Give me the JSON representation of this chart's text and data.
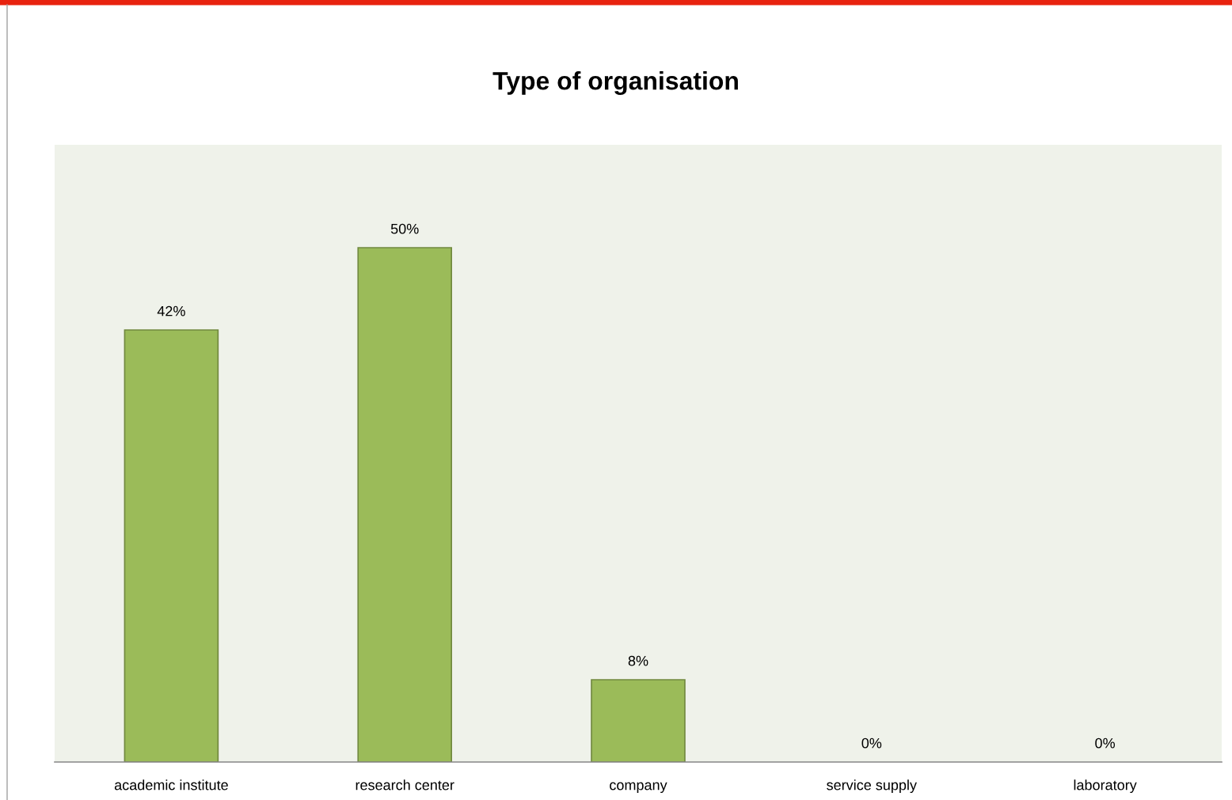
{
  "chart_data": {
    "type": "bar",
    "title": "Type of organisation",
    "categories": [
      "academic institute",
      "research center",
      "company",
      "service supply",
      "laboratory"
    ],
    "values": [
      42,
      50,
      8,
      0,
      0
    ],
    "value_labels": [
      "42%",
      "50%",
      "8%",
      "0%",
      "0%"
    ],
    "color": "#9bbb59",
    "ylim": [
      0,
      60
    ],
    "tick_labels": "x",
    "grid": false,
    "legend": false
  }
}
